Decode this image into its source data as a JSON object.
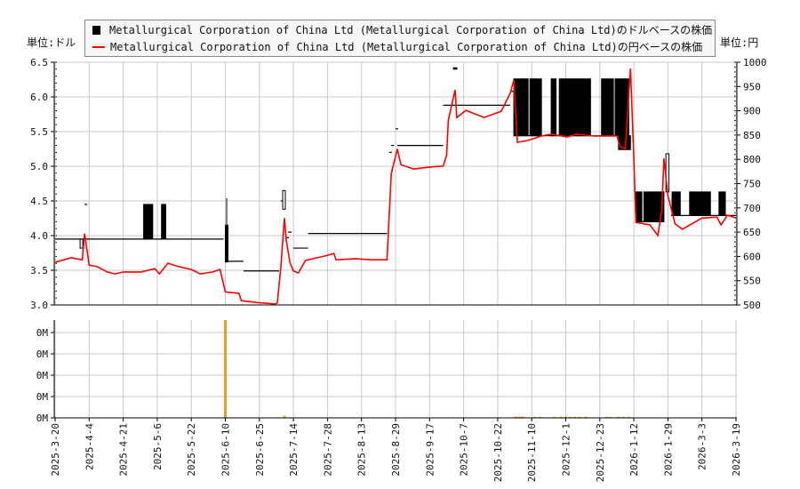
{
  "legend": {
    "usd_label": "Metallurgical Corporation of China Ltd (Metallurgical Corporation of China Ltd)のドルベースの株価",
    "jpy_label": "Metallurgical Corporation of China Ltd (Metallurgical Corporation of China Ltd)の円ベースの株価"
  },
  "units": {
    "left": "単位:ドル",
    "right": "単位:円"
  },
  "colors": {
    "usd": "#000000",
    "jpy": "#ff0000",
    "volume": "#e8a020",
    "grid": "#c8c8c8"
  },
  "chart_data": [
    {
      "type": "candlestick+line",
      "x_ticks": [
        "2025-3-20",
        "2025-4-4",
        "2025-4-21",
        "2025-5-6",
        "2025-5-22",
        "2025-6-10",
        "2025-6-25",
        "2025-7-14",
        "2025-7-28",
        "2025-8-13",
        "2025-8-29",
        "2025-9-17",
        "2025-10-7",
        "2025-10-22",
        "2025-11-10",
        "2025-12-1",
        "2025-12-23",
        "2026-1-12",
        "2026-1-29",
        "2026-3-3",
        "2026-3-19"
      ],
      "left_axis": {
        "ylim": [
          3.0,
          6.5
        ],
        "ticks": [
          "3.0",
          "3.5",
          "4.0",
          "4.5",
          "5.0",
          "5.5",
          "6.0",
          "6.5"
        ]
      },
      "right_axis": {
        "ylim": [
          500,
          1000
        ],
        "ticks": [
          "500",
          "550",
          "600",
          "650",
          "700",
          "750",
          "800",
          "850",
          "900",
          "950",
          "1000"
        ]
      },
      "grid": true,
      "usd_candles": [
        {
          "from": "2025-3-20",
          "to": "2025-6-9",
          "open": 3.95,
          "close": 3.95
        },
        {
          "from": "2025-3-31",
          "to": "2025-4-1",
          "open": 3.82,
          "close": 3.95
        },
        {
          "from": "2025-4-2",
          "to": "2025-4-3",
          "open": 4.45,
          "close": 4.45
        },
        {
          "from": "2025-4-30",
          "to": "2025-5-4",
          "open": 4.45,
          "close": 3.95
        },
        {
          "from": "2025-5-8",
          "to": "2025-5-10",
          "open": 4.45,
          "close": 3.95
        },
        {
          "from": "2025-6-10",
          "to": "2025-6-11",
          "open": 4.15,
          "close": 3.62,
          "high": 4.54
        },
        {
          "from": "2025-6-11",
          "to": "2025-6-18",
          "open": 3.63,
          "close": 3.63
        },
        {
          "from": "2025-6-18",
          "to": "2025-7-6",
          "open": 3.49,
          "close": 3.49
        },
        {
          "from": "2025-7-7",
          "to": "2025-7-8",
          "open": 4.5,
          "close": 4.5
        },
        {
          "from": "2025-7-8",
          "to": "2025-7-9",
          "open": 4.38,
          "close": 4.65
        },
        {
          "from": "2025-7-10",
          "to": "2025-7-11",
          "open": 3.97,
          "close": 3.97
        },
        {
          "from": "2025-7-11",
          "to": "2025-7-13",
          "open": 4.05,
          "close": 4.05
        },
        {
          "from": "2025-7-14",
          "to": "2025-7-20",
          "open": 3.82,
          "close": 3.82
        },
        {
          "from": "2025-7-20",
          "to": "2025-8-25",
          "open": 4.03,
          "close": 4.03
        },
        {
          "from": "2025-8-26",
          "to": "2025-8-27",
          "open": 5.2,
          "close": 5.2
        },
        {
          "from": "2025-8-27",
          "to": "2025-8-28",
          "open": 5.3,
          "close": 5.3
        },
        {
          "from": "2025-8-29",
          "to": "2025-8-30",
          "open": 5.54,
          "close": 5.54
        },
        {
          "from": "2025-8-30",
          "to": "2025-9-25",
          "open": 5.3,
          "close": 5.3
        },
        {
          "from": "2025-9-25",
          "to": "2025-10-29",
          "open": 5.88,
          "close": 5.88
        },
        {
          "from": "2025-10-1",
          "to": "2025-10-3",
          "open": 6.42,
          "close": 6.4
        },
        {
          "from": "2025-10-29",
          "to": "2025-10-31",
          "open": 6.08,
          "close": 6.08
        },
        {
          "from": "2025-10-31",
          "to": "2026-1-2",
          "open": 5.44,
          "close": 5.44
        },
        {
          "from": "2025-10-31",
          "to": "2025-11-8",
          "open": 6.26,
          "close": 5.44
        },
        {
          "from": "2025-11-9",
          "to": "2025-11-16",
          "open": 6.26,
          "close": 5.44
        },
        {
          "from": "2025-11-22",
          "to": "2025-11-25",
          "open": 6.26,
          "close": 5.44
        },
        {
          "from": "2025-11-27",
          "to": "2025-12-17",
          "open": 6.26,
          "close": 5.44
        },
        {
          "from": "2025-12-24",
          "to": "2025-12-31",
          "open": 6.26,
          "close": 5.44
        },
        {
          "from": "2026-1-1",
          "to": "2026-1-9",
          "open": 6.26,
          "close": 5.44
        },
        {
          "from": "2026-1-3",
          "to": "2026-1-10",
          "open": 5.44,
          "close": 5.24
        },
        {
          "from": "2026-1-13",
          "to": "2026-1-27",
          "open": 4.2,
          "close": 4.2
        },
        {
          "from": "2026-1-13",
          "to": "2026-1-16",
          "open": 4.63,
          "close": 4.2
        },
        {
          "from": "2026-1-17",
          "to": "2026-1-27",
          "open": 4.63,
          "close": 4.2
        },
        {
          "from": "2026-1-28",
          "to": "2026-1-30",
          "open": 4.63,
          "close": 5.18
        },
        {
          "from": "2026-2-1",
          "to": "2026-3-19",
          "open": 4.29,
          "close": 4.29
        },
        {
          "from": "2026-2-2",
          "to": "2026-2-10",
          "open": 4.63,
          "close": 4.29
        },
        {
          "from": "2026-2-19",
          "to": "2026-3-7",
          "open": 4.63,
          "close": 4.29
        },
        {
          "from": "2026-3-11",
          "to": "2026-3-14",
          "open": 4.63,
          "close": 4.29
        }
      ],
      "jpy_line": [
        [
          "2025-3-20",
          588
        ],
        [
          "2025-3-27",
          597
        ],
        [
          "2025-4-1",
          593
        ],
        [
          "2025-4-2",
          647
        ],
        [
          "2025-4-4",
          582
        ],
        [
          "2025-4-8",
          579
        ],
        [
          "2025-4-13",
          568
        ],
        [
          "2025-4-17",
          564
        ],
        [
          "2025-4-21",
          568
        ],
        [
          "2025-4-29",
          568
        ],
        [
          "2025-5-5",
          575
        ],
        [
          "2025-5-7",
          564
        ],
        [
          "2025-5-11",
          586
        ],
        [
          "2025-5-16",
          579
        ],
        [
          "2025-5-22",
          573
        ],
        [
          "2025-5-27",
          564
        ],
        [
          "2025-6-3",
          568
        ],
        [
          "2025-6-7",
          573
        ],
        [
          "2025-6-10",
          527
        ],
        [
          "2025-6-16",
          524
        ],
        [
          "2025-6-17",
          509
        ],
        [
          "2025-6-24",
          505
        ],
        [
          "2025-7-4",
          502
        ],
        [
          "2025-7-5",
          505
        ],
        [
          "2025-7-7",
          579
        ],
        [
          "2025-7-9",
          679
        ],
        [
          "2025-7-10",
          634
        ],
        [
          "2025-7-12",
          588
        ],
        [
          "2025-7-14",
          570
        ],
        [
          "2025-7-16",
          566
        ],
        [
          "2025-7-19",
          592
        ],
        [
          "2025-7-27",
          601
        ],
        [
          "2025-7-31",
          606
        ],
        [
          "2025-8-1",
          593
        ],
        [
          "2025-8-10",
          595
        ],
        [
          "2025-8-18",
          593
        ],
        [
          "2025-8-25",
          593
        ],
        [
          "2025-8-27",
          771
        ],
        [
          "2025-8-30",
          821
        ],
        [
          "2025-9-1",
          789
        ],
        [
          "2025-9-8",
          780
        ],
        [
          "2025-9-17",
          784
        ],
        [
          "2025-9-25",
          786
        ],
        [
          "2025-9-27",
          808
        ],
        [
          "2025-9-28",
          881
        ],
        [
          "2025-10-2",
          943
        ],
        [
          "2025-10-3",
          886
        ],
        [
          "2025-10-8",
          901
        ],
        [
          "2025-10-16",
          886
        ],
        [
          "2025-10-24",
          899
        ],
        [
          "2025-10-29",
          936
        ],
        [
          "2025-10-31",
          963
        ],
        [
          "2025-11-2",
          835
        ],
        [
          "2025-11-8",
          839
        ],
        [
          "2025-11-16",
          848
        ],
        [
          "2025-11-22",
          852
        ],
        [
          "2025-12-2",
          846
        ],
        [
          "2025-12-8",
          852
        ],
        [
          "2025-12-19",
          848
        ],
        [
          "2025-12-25",
          848
        ],
        [
          "2026-1-2",
          848
        ],
        [
          "2026-1-4",
          826
        ],
        [
          "2026-1-7",
          822
        ],
        [
          "2026-1-10",
          987
        ],
        [
          "2026-1-12",
          799
        ],
        [
          "2026-1-13",
          670
        ],
        [
          "2026-1-20",
          665
        ],
        [
          "2026-1-24",
          643
        ],
        [
          "2026-1-26",
          696
        ],
        [
          "2026-1-27",
          802
        ],
        [
          "2026-1-29",
          725
        ],
        [
          "2026-2-5",
          667
        ],
        [
          "2026-2-12",
          656
        ],
        [
          "2026-3-3",
          679
        ],
        [
          "2026-3-10",
          681
        ],
        [
          "2026-3-12",
          665
        ],
        [
          "2026-3-15",
          685
        ],
        [
          "2026-3-19",
          679
        ]
      ]
    },
    {
      "type": "bar",
      "ylabel_unit": "M",
      "ylim": [
        0,
        0.0046
      ],
      "ticks": [
        "0M",
        "0M",
        "0M",
        "0M",
        "0M"
      ],
      "volume": [
        [
          "2025-6-10",
          0.0046
        ],
        [
          "2025-7-9",
          0.0001
        ],
        [
          "2025-11-1",
          6e-05
        ],
        [
          "2025-11-3",
          6e-05
        ],
        [
          "2025-11-5",
          6e-05
        ],
        [
          "2025-11-12",
          5e-05
        ],
        [
          "2025-11-15",
          5e-05
        ],
        [
          "2025-11-24",
          5e-05
        ],
        [
          "2025-11-28",
          5e-05
        ],
        [
          "2025-12-1",
          5e-05
        ],
        [
          "2025-12-4",
          5e-05
        ],
        [
          "2025-12-7",
          5e-05
        ],
        [
          "2025-12-10",
          5e-05
        ],
        [
          "2025-12-14",
          5e-05
        ],
        [
          "2025-12-27",
          5e-05
        ],
        [
          "2025-12-29",
          5e-05
        ],
        [
          "2026-1-3",
          5e-05
        ],
        [
          "2026-1-6",
          5e-05
        ],
        [
          "2026-1-9",
          5e-05
        ]
      ]
    }
  ]
}
